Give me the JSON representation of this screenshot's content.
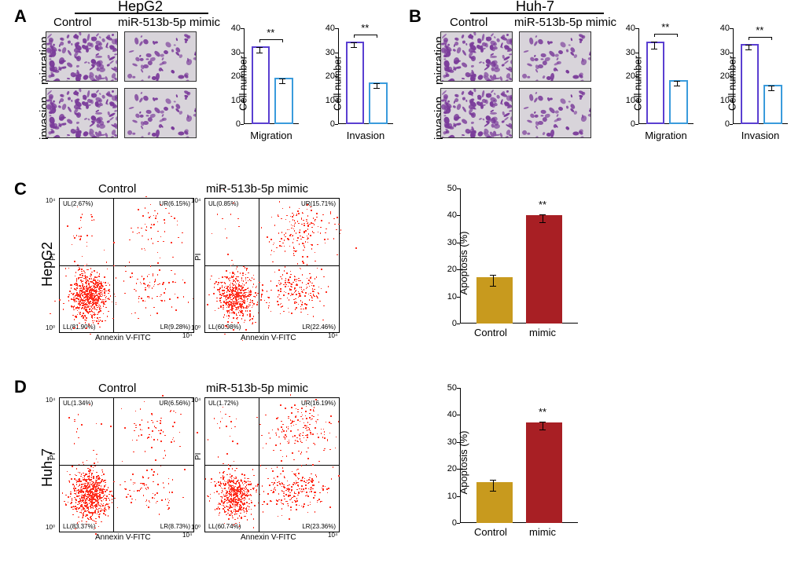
{
  "colors": {
    "control_bar_border": "#5a3fd1",
    "control_bar_fill": "#ffffff",
    "mimic_bar_border": "#3a9bdc",
    "mimic_bar_fill": "#ffffff",
    "apop_control_fill": "#c89a1e",
    "apop_mimic_fill": "#a81f24",
    "micro_bg": "#d8d4da",
    "micro_cell": "#7a3b9a",
    "flow_dot": "#ff3020"
  },
  "labels": {
    "control": "Control",
    "mimic": "miR-513b-5p mimic",
    "migration": "migration",
    "invasion": "invasion",
    "migration_cap": "Migration",
    "invasion_cap": "Invasion",
    "hepg2": "HepG2",
    "huh7": "Huh-7",
    "cellnum": "Cell number",
    "apoptosis": "Apoptosis (%)",
    "pi": "PI",
    "annexin": "Annexin V-FITC",
    "sig": "**"
  },
  "panA": {
    "barMig": {
      "ylim": 40,
      "ytick": 10,
      "control": 31,
      "mimic": 18,
      "err_c": 1.2,
      "err_m": 1.0
    },
    "barInv": {
      "ylim": 40,
      "ytick": 10,
      "control": 33,
      "mimic": 16,
      "err_c": 1.0,
      "err_m": 1.0
    }
  },
  "panB": {
    "barMig": {
      "ylim": 40,
      "ytick": 10,
      "control": 33,
      "mimic": 17,
      "err_c": 1.5,
      "err_m": 1.0
    },
    "barInv": {
      "ylim": 40,
      "ytick": 10,
      "control": 32,
      "mimic": 15,
      "err_c": 1.0,
      "err_m": 1.0
    }
  },
  "panC": {
    "c_UL": "UL(2.67%)",
    "c_UR": "UR(6.15%)",
    "c_LL": "LL(81.90%)",
    "c_LR": "LR(9.28%)",
    "m_UL": "UL(0.85%)",
    "m_UR": "UR(15.71%)",
    "m_LL": "LL(60.98%)",
    "m_LR": "LR(22.46%)",
    "bar": {
      "ylim": 50,
      "ytick": 10,
      "control": 16,
      "mimic": 39,
      "err_c": 2.0,
      "err_m": 1.5
    }
  },
  "panD": {
    "c_UL": "UL(1.34%)",
    "c_UR": "UR(6.56%)",
    "c_LL": "LL(83.37%)",
    "c_LR": "LR(8.73%)",
    "m_UL": "UL(1.72%)",
    "m_UR": "UR(16.19%)",
    "m_LL": "LL(60.74%)",
    "m_LR": "LR(23.36%)",
    "bar": {
      "ylim": 50,
      "ytick": 10,
      "control": 14,
      "mimic": 36,
      "err_c": 2.0,
      "err_m": 1.5
    }
  }
}
